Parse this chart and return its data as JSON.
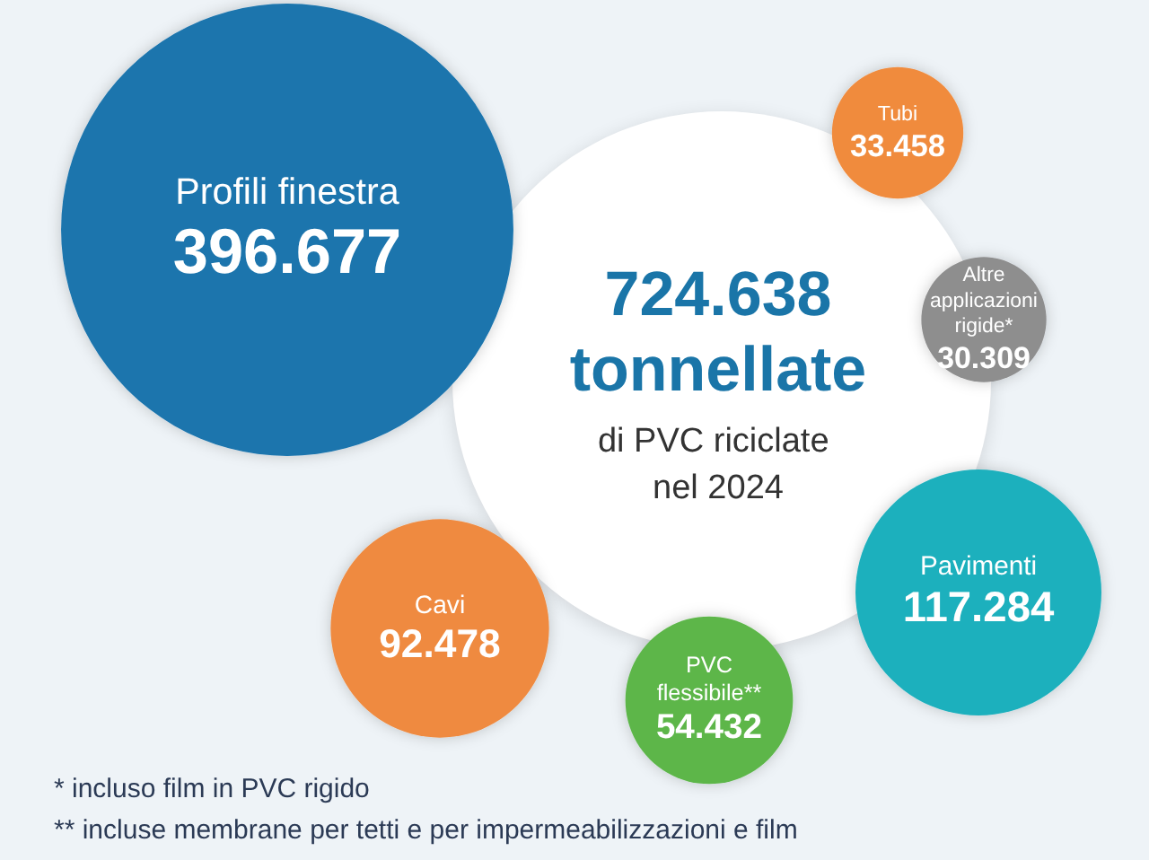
{
  "chart_data": {
    "type": "other",
    "title": "724.638 tonnellate",
    "subtitle": "di PVC riciclate nel 2024",
    "categories": [
      "Profili finestra",
      "Tubi",
      "Altre applicazioni rigide*",
      "Pavimenti",
      "Cavi",
      "PVC flessibile**"
    ],
    "values": [
      396677,
      33458,
      30309,
      117284,
      92478,
      54432
    ],
    "value_labels": [
      "396.677",
      "33.458",
      "30.309",
      "117.284",
      "92.478",
      "54.432"
    ],
    "colors": [
      "#1a74ad",
      "#f08b3d",
      "#8e8e8e",
      "#1fb0bd",
      "#ef8a3f",
      "#5db64a"
    ],
    "annotations": [
      "*  incluso film in PVC rigido",
      "** incluse membrane per tetti e per impermeabilizzazioni e film"
    ]
  }
}
